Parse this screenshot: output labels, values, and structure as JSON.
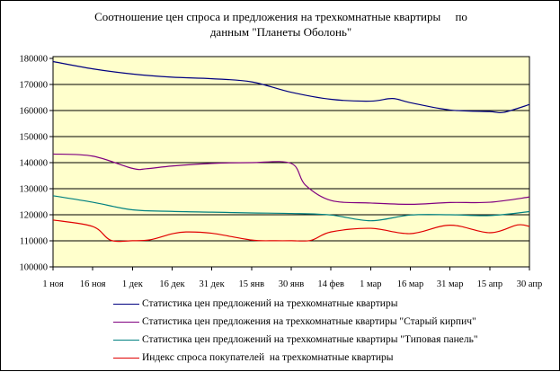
{
  "title": {
    "line1": "Соотношение цен спроса и предложения на трехкомнатные квартиры     по",
    "line2": "данным \"Планеты Оболонь\""
  },
  "chart_data": {
    "type": "line",
    "title": "Соотношение цен спроса и предложения на трехкомнатные квартиры по данным \"Планеты Оболонь\"",
    "xlabel": "",
    "ylabel": "",
    "ylim": [
      100000,
      180000
    ],
    "y_ticks": [
      100000,
      110000,
      120000,
      130000,
      140000,
      150000,
      160000,
      170000,
      180000
    ],
    "grid": "horizontal",
    "plot_bg": "#FFFFCC",
    "grid_color": "#000000",
    "legend_position": "bottom",
    "categories": [
      "1 ноя",
      "16 ноя",
      "1 дек",
      "16 дек",
      "31 дек",
      "15 янв",
      "30 янв",
      "14 фев",
      "1 мар",
      "16 мар",
      "31 мар",
      "15 апр",
      "30 апр"
    ],
    "series": [
      {
        "key": "offers-all",
        "name": "Статистика цен предложений на трехкомнатные квартиры",
        "color": "#000080",
        "values": [
          178800,
          176000,
          174000,
          172800,
          172200,
          171000,
          167000,
          164300,
          163600,
          163000,
          160200,
          159600,
          162300
        ],
        "extra_points": [
          [
            8.55,
            164600
          ],
          [
            11.35,
            159300
          ]
        ]
      },
      {
        "key": "offers-old-brick",
        "name": "Статистика цен предложения на трехкомнатные квартиры \"Старый кирпич\"",
        "color": "#800080",
        "values": [
          143300,
          142500,
          137800,
          138700,
          139700,
          140000,
          139700,
          125500,
          124500,
          124000,
          124700,
          124800,
          126800
        ],
        "extra_points": [
          [
            2.35,
            137650
          ],
          [
            6.35,
            131500
          ]
        ]
      },
      {
        "key": "offers-panel",
        "name": "Статистика цен предложений на трехкомнатные квартиры \"Типовая панель\"",
        "color": "#008080",
        "values": [
          127300,
          124800,
          121900,
          121300,
          121000,
          120700,
          120500,
          119900,
          117700,
          119900,
          120000,
          119700,
          121200
        ],
        "extra_points": []
      },
      {
        "key": "demand-index",
        "name": "Индекс спроса покупателей  на трехкомнатные квартиры",
        "color": "#e00000",
        "values": [
          118000,
          115500,
          110050,
          112700,
          112900,
          110300,
          110050,
          113400,
          114800,
          112750,
          116000,
          113100,
          115500
        ],
        "extra_points": [
          [
            1.45,
            110250
          ],
          [
            2.45,
            110400
          ],
          [
            3.35,
            113400
          ],
          [
            5.6,
            110050
          ],
          [
            6.5,
            110200
          ],
          [
            11.7,
            116100
          ]
        ]
      }
    ]
  }
}
